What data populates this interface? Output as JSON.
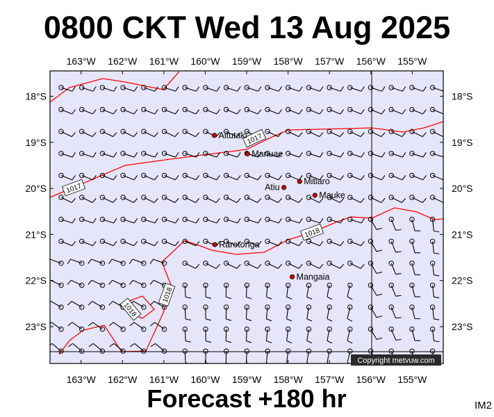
{
  "header": {
    "title": "0800 CKT Wed 13 Aug 2025"
  },
  "footer": {
    "forecast_label": "Forecast +180 hr",
    "map_code": "IM2"
  },
  "copyright": "Copyright metvuw.com",
  "colors": {
    "ocean": "#e6e6fa",
    "isobar": "#ff0000",
    "barb": "#000000",
    "place_dot": "#d40000"
  },
  "map": {
    "lon_range": [
      -163.75,
      -154.25
    ],
    "lat_range": [
      -17.45,
      -23.8
    ],
    "lon_ticks": [
      "163°W",
      "162°W",
      "161°W",
      "160°W",
      "159°W",
      "158°W",
      "157°W",
      "156°W",
      "155°W"
    ],
    "lat_ticks": [
      "18°S",
      "19°S",
      "20°S",
      "21°S",
      "22°S",
      "23°S"
    ],
    "places": [
      {
        "name": "Aitutaki",
        "lon": -159.78,
        "lat": -18.85
      },
      {
        "name": "Manuae",
        "lon": -158.98,
        "lat": -19.25
      },
      {
        "name": "Mitiaro",
        "lon": -157.72,
        "lat": -19.85
      },
      {
        "name": "Atiu",
        "lon": -158.1,
        "lat": -19.98
      },
      {
        "name": "Mauke",
        "lon": -157.35,
        "lat": -20.15
      },
      {
        "name": "Rarotonga",
        "lon": -159.77,
        "lat": -21.22
      },
      {
        "name": "Mangaia",
        "lon": -157.9,
        "lat": -21.92
      }
    ],
    "isobars": [
      {
        "label": "1017"
      },
      {
        "label": "1017"
      },
      {
        "label": "1018"
      },
      {
        "label": "1018"
      },
      {
        "label": "1018"
      }
    ]
  }
}
